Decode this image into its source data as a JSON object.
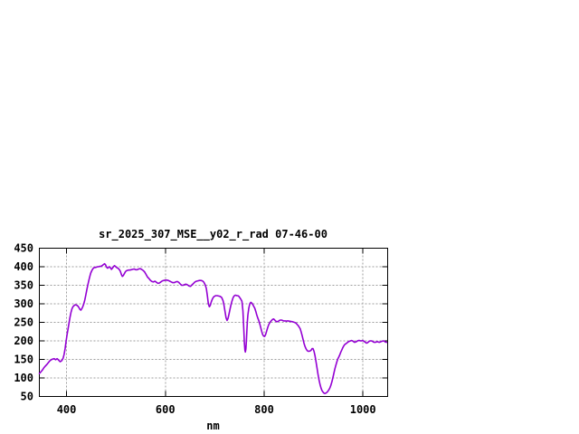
{
  "window": {
    "background": "#ffffff"
  },
  "chart_data": {
    "type": "line",
    "title": "sr_2025_307_MSE__y02_r_rad 07-46-00",
    "xlabel": "nm",
    "ylabel": "",
    "xlim": [
      345,
      1050
    ],
    "ylim": [
      50,
      450
    ],
    "xticks": [
      400,
      600,
      800,
      1000
    ],
    "yticks": [
      50,
      100,
      150,
      200,
      250,
      300,
      350,
      400,
      450
    ],
    "grid": true,
    "legend": "none",
    "line_color": "#9400d3",
    "grid_color": "#9e9e9e",
    "axis_color": "#000000",
    "points": [
      [
        345,
        112
      ],
      [
        348,
        116
      ],
      [
        351,
        121
      ],
      [
        354,
        127
      ],
      [
        357,
        132
      ],
      [
        360,
        136
      ],
      [
        363,
        141
      ],
      [
        366,
        146
      ],
      [
        369,
        149
      ],
      [
        372,
        151
      ],
      [
        375,
        152
      ],
      [
        378,
        149
      ],
      [
        381,
        152
      ],
      [
        384,
        148
      ],
      [
        387,
        144
      ],
      [
        390,
        146
      ],
      [
        393,
        153
      ],
      [
        395,
        163
      ],
      [
        397,
        178
      ],
      [
        399,
        198
      ],
      [
        401,
        216
      ],
      [
        403,
        232
      ],
      [
        405,
        248
      ],
      [
        407,
        264
      ],
      [
        409,
        277
      ],
      [
        411,
        286
      ],
      [
        413,
        292
      ],
      [
        415,
        295
      ],
      [
        417,
        297
      ],
      [
        419,
        297
      ],
      [
        421,
        296
      ],
      [
        423,
        294
      ],
      [
        425,
        290
      ],
      [
        427,
        285
      ],
      [
        429,
        283
      ],
      [
        431,
        287
      ],
      [
        433,
        293
      ],
      [
        435,
        300
      ],
      [
        437,
        310
      ],
      [
        439,
        323
      ],
      [
        441,
        337
      ],
      [
        443,
        350
      ],
      [
        445,
        362
      ],
      [
        447,
        373
      ],
      [
        449,
        383
      ],
      [
        451,
        389
      ],
      [
        453,
        394
      ],
      [
        455,
        397
      ],
      [
        457,
        398
      ],
      [
        459,
        398
      ],
      [
        461,
        399
      ],
      [
        463,
        400
      ],
      [
        465,
        400
      ],
      [
        467,
        401
      ],
      [
        469,
        401
      ],
      [
        471,
        402
      ],
      [
        473,
        404
      ],
      [
        475,
        406
      ],
      [
        477,
        408
      ],
      [
        479,
        405
      ],
      [
        481,
        399
      ],
      [
        483,
        396
      ],
      [
        485,
        398
      ],
      [
        487,
        400
      ],
      [
        489,
        397
      ],
      [
        491,
        393
      ],
      [
        493,
        396
      ],
      [
        495,
        400
      ],
      [
        497,
        403
      ],
      [
        499,
        401
      ],
      [
        501,
        398
      ],
      [
        503,
        397
      ],
      [
        505,
        395
      ],
      [
        507,
        392
      ],
      [
        509,
        387
      ],
      [
        511,
        379
      ],
      [
        513,
        374
      ],
      [
        515,
        376
      ],
      [
        517,
        381
      ],
      [
        519,
        386
      ],
      [
        521,
        389
      ],
      [
        523,
        390
      ],
      [
        525,
        391
      ],
      [
        528,
        391
      ],
      [
        531,
        392
      ],
      [
        534,
        393
      ],
      [
        537,
        394
      ],
      [
        540,
        392
      ],
      [
        543,
        392
      ],
      [
        546,
        394
      ],
      [
        549,
        395
      ],
      [
        552,
        393
      ],
      [
        555,
        390
      ],
      [
        558,
        386
      ],
      [
        561,
        379
      ],
      [
        564,
        372
      ],
      [
        567,
        368
      ],
      [
        570,
        363
      ],
      [
        573,
        360
      ],
      [
        576,
        359
      ],
      [
        579,
        361
      ],
      [
        582,
        358
      ],
      [
        585,
        355
      ],
      [
        588,
        356
      ],
      [
        591,
        359
      ],
      [
        594,
        362
      ],
      [
        597,
        363
      ],
      [
        600,
        364
      ],
      [
        603,
        364
      ],
      [
        606,
        363
      ],
      [
        609,
        361
      ],
      [
        612,
        359
      ],
      [
        615,
        357
      ],
      [
        618,
        357
      ],
      [
        621,
        359
      ],
      [
        624,
        360
      ],
      [
        627,
        358
      ],
      [
        630,
        354
      ],
      [
        633,
        350
      ],
      [
        636,
        350
      ],
      [
        639,
        352
      ],
      [
        642,
        353
      ],
      [
        645,
        351
      ],
      [
        648,
        348
      ],
      [
        651,
        347
      ],
      [
        654,
        351
      ],
      [
        657,
        355
      ],
      [
        660,
        359
      ],
      [
        663,
        361
      ],
      [
        666,
        362
      ],
      [
        669,
        363
      ],
      [
        672,
        363
      ],
      [
        675,
        362
      ],
      [
        678,
        358
      ],
      [
        681,
        350
      ],
      [
        683,
        341
      ],
      [
        685,
        322
      ],
      [
        687,
        300
      ],
      [
        689,
        292
      ],
      [
        691,
        296
      ],
      [
        693,
        305
      ],
      [
        695,
        312
      ],
      [
        697,
        317
      ],
      [
        699,
        320
      ],
      [
        702,
        322
      ],
      [
        705,
        322
      ],
      [
        708,
        321
      ],
      [
        711,
        320
      ],
      [
        714,
        317
      ],
      [
        717,
        308
      ],
      [
        719,
        295
      ],
      [
        721,
        278
      ],
      [
        723,
        262
      ],
      [
        725,
        255
      ],
      [
        727,
        261
      ],
      [
        729,
        273
      ],
      [
        731,
        286
      ],
      [
        733,
        298
      ],
      [
        735,
        308
      ],
      [
        737,
        316
      ],
      [
        739,
        321
      ],
      [
        741,
        323
      ],
      [
        743,
        323
      ],
      [
        745,
        322
      ],
      [
        747,
        322
      ],
      [
        749,
        320
      ],
      [
        751,
        316
      ],
      [
        753,
        312
      ],
      [
        755,
        307
      ],
      [
        757,
        282
      ],
      [
        759,
        225
      ],
      [
        760,
        195
      ],
      [
        761,
        175
      ],
      [
        762,
        170
      ],
      [
        763,
        178
      ],
      [
        764,
        198
      ],
      [
        765,
        228
      ],
      [
        766,
        252
      ],
      [
        767,
        270
      ],
      [
        769,
        288
      ],
      [
        771,
        300
      ],
      [
        773,
        304
      ],
      [
        775,
        302
      ],
      [
        777,
        298
      ],
      [
        779,
        293
      ],
      [
        781,
        288
      ],
      [
        783,
        280
      ],
      [
        785,
        270
      ],
      [
        787,
        262
      ],
      [
        789,
        255
      ],
      [
        791,
        246
      ],
      [
        793,
        236
      ],
      [
        795,
        226
      ],
      [
        797,
        217
      ],
      [
        799,
        213
      ],
      [
        801,
        212
      ],
      [
        803,
        217
      ],
      [
        805,
        226
      ],
      [
        807,
        235
      ],
      [
        809,
        243
      ],
      [
        811,
        248
      ],
      [
        813,
        252
      ],
      [
        815,
        255
      ],
      [
        817,
        258
      ],
      [
        819,
        259
      ],
      [
        821,
        257
      ],
      [
        823,
        254
      ],
      [
        825,
        252
      ],
      [
        827,
        252
      ],
      [
        829,
        253
      ],
      [
        831,
        255
      ],
      [
        833,
        256
      ],
      [
        835,
        256
      ],
      [
        837,
        255
      ],
      [
        839,
        254
      ],
      [
        841,
        254
      ],
      [
        843,
        254
      ],
      [
        845,
        253
      ],
      [
        847,
        254
      ],
      [
        849,
        254
      ],
      [
        851,
        253
      ],
      [
        853,
        253
      ],
      [
        855,
        252
      ],
      [
        857,
        252
      ],
      [
        859,
        251
      ],
      [
        861,
        250
      ],
      [
        863,
        249
      ],
      [
        865,
        247
      ],
      [
        867,
        244
      ],
      [
        869,
        241
      ],
      [
        871,
        237
      ],
      [
        873,
        233
      ],
      [
        875,
        224
      ],
      [
        877,
        214
      ],
      [
        879,
        203
      ],
      [
        881,
        192
      ],
      [
        883,
        184
      ],
      [
        885,
        178
      ],
      [
        887,
        174
      ],
      [
        889,
        172
      ],
      [
        891,
        172
      ],
      [
        893,
        173
      ],
      [
        895,
        175
      ],
      [
        897,
        179
      ],
      [
        899,
        179
      ],
      [
        901,
        172
      ],
      [
        903,
        160
      ],
      [
        905,
        144
      ],
      [
        907,
        127
      ],
      [
        909,
        110
      ],
      [
        911,
        95
      ],
      [
        913,
        83
      ],
      [
        915,
        73
      ],
      [
        917,
        66
      ],
      [
        919,
        62
      ],
      [
        921,
        59
      ],
      [
        923,
        58
      ],
      [
        925,
        59
      ],
      [
        927,
        61
      ],
      [
        929,
        64
      ],
      [
        931,
        68
      ],
      [
        933,
        73
      ],
      [
        935,
        80
      ],
      [
        937,
        89
      ],
      [
        939,
        100
      ],
      [
        941,
        112
      ],
      [
        943,
        124
      ],
      [
        945,
        134
      ],
      [
        947,
        143
      ],
      [
        949,
        151
      ],
      [
        951,
        156
      ],
      [
        953,
        162
      ],
      [
        955,
        169
      ],
      [
        957,
        175
      ],
      [
        959,
        181
      ],
      [
        961,
        186
      ],
      [
        963,
        190
      ],
      [
        965,
        192
      ],
      [
        967,
        194
      ],
      [
        969,
        196
      ],
      [
        971,
        198
      ],
      [
        973,
        199
      ],
      [
        975,
        200
      ],
      [
        977,
        201
      ],
      [
        979,
        200
      ],
      [
        981,
        198
      ],
      [
        983,
        196
      ],
      [
        985,
        197
      ],
      [
        987,
        198
      ],
      [
        989,
        200
      ],
      [
        991,
        201
      ],
      [
        993,
        201
      ],
      [
        995,
        200
      ],
      [
        997,
        200
      ],
      [
        999,
        201
      ],
      [
        1001,
        200
      ],
      [
        1003,
        198
      ],
      [
        1005,
        196
      ],
      [
        1007,
        194
      ],
      [
        1009,
        195
      ],
      [
        1011,
        197
      ],
      [
        1013,
        199
      ],
      [
        1015,
        200
      ],
      [
        1017,
        200
      ],
      [
        1019,
        199
      ],
      [
        1021,
        197
      ],
      [
        1023,
        196
      ],
      [
        1025,
        196
      ],
      [
        1027,
        197
      ],
      [
        1029,
        198
      ],
      [
        1031,
        197
      ],
      [
        1033,
        196
      ],
      [
        1035,
        197
      ],
      [
        1037,
        198
      ],
      [
        1039,
        199
      ],
      [
        1041,
        200
      ],
      [
        1043,
        199
      ],
      [
        1045,
        197
      ],
      [
        1048,
        196
      ]
    ]
  }
}
